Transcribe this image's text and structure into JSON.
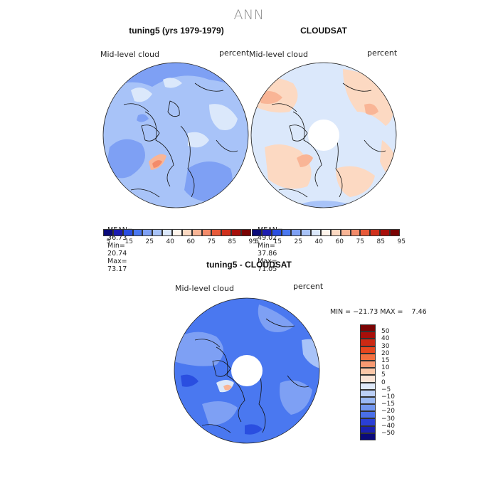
{
  "title": "ANN",
  "panels": [
    {
      "title": "tuning5 (yrs 1979-1979)",
      "variable_label": "Mid-level cloud",
      "units_label": "percent",
      "stats": {
        "mean_label": "MEAN=",
        "mean": "36.73",
        "min_label": "Min=",
        "min": "20.74",
        "max_label": "Max=",
        "max": "73.17"
      }
    },
    {
      "title": "CLOUDSAT",
      "variable_label": "Mid-level cloud",
      "units_label": "percent",
      "stats": {
        "mean_label": "MEAN=",
        "mean": "49.02",
        "min_label": "Min=",
        "min": "37.86",
        "max_label": "Max=",
        "max": "71.05"
      }
    }
  ],
  "colorbar_top": {
    "colors": [
      "#0a0a7a",
      "#1b1bb0",
      "#2a4ee0",
      "#4a78f0",
      "#7ea0f4",
      "#a8c3f8",
      "#dbe8fb",
      "#fff5ec",
      "#fcd9c2",
      "#f9b596",
      "#f38b6a",
      "#e85a3a",
      "#d0301c",
      "#a80f0a",
      "#7a0303"
    ],
    "tick_labels": [
      "5",
      "15",
      "25",
      "40",
      "60",
      "75",
      "85",
      "95"
    ]
  },
  "diff_panel": {
    "title": "tuning5 - CLOUDSAT",
    "variable_label": "Mid-level cloud",
    "units_label": "percent",
    "min_max_label": "MIN = −21.73 MAX =    7.46"
  },
  "colorbar_diff": {
    "colors": [
      "#7a0303",
      "#a80f0a",
      "#cc2a14",
      "#e8471e",
      "#f3703f",
      "#f89a72",
      "#fbc7a8",
      "#fbe4d6",
      "#dfe9fa",
      "#bcd0f6",
      "#9ab8f3",
      "#7296ee",
      "#4a6fe8",
      "#2a3fd6",
      "#1a20b0",
      "#0a0a7a"
    ],
    "tick_labels": [
      "50",
      "40",
      "30",
      "20",
      "15",
      "10",
      "5",
      "0",
      "−5",
      "−10",
      "−15",
      "−20",
      "−30",
      "−40",
      "−50"
    ]
  }
}
